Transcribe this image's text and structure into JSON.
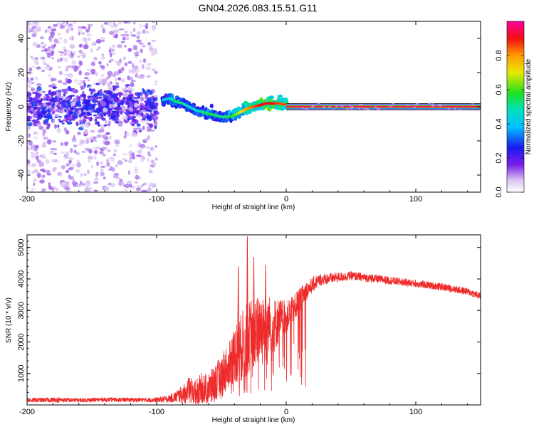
{
  "figure_title": "GN04.2026.083.15.51.G11",
  "chart_data": [
    {
      "type": "heatmap",
      "title": "GN04.2026.083.15.51.G11",
      "xlabel": "Height of straight line (km)",
      "ylabel": "Frequency (Hz)",
      "xlim": [
        -200,
        150
      ],
      "ylim": [
        -50,
        50
      ],
      "xticks": [
        -200,
        -100,
        0,
        100
      ],
      "yticks": [
        -40,
        -20,
        0,
        20,
        40
      ],
      "colorbar": {
        "label": "Normalized spectral amplitude",
        "range": [
          0,
          1
        ],
        "ticks": [
          "0.0",
          "0.2",
          "0.4",
          "0.6",
          "0.8"
        ]
      },
      "ridge": {
        "name": "dominant frequency trace",
        "x": [
          -95,
          -90,
          -85,
          -80,
          -75,
          -70,
          -65,
          -60,
          -55,
          -50,
          -45,
          -40,
          -35,
          -30,
          -25,
          -20,
          -15,
          -10,
          -5,
          0,
          150
        ],
        "y": [
          4,
          5,
          3,
          2,
          0,
          -2,
          -3,
          -4,
          -5,
          -6,
          -6,
          -5,
          -3,
          -1,
          0,
          1,
          2,
          2,
          2,
          1,
          0
        ],
        "amplitude": [
          0.4,
          0.45,
          0.55,
          0.5,
          0.45,
          0.45,
          0.5,
          0.55,
          0.55,
          0.5,
          0.55,
          0.6,
          0.7,
          0.8,
          0.85,
          0.9,
          0.9,
          0.9,
          0.85,
          0.85,
          0.95
        ]
      },
      "noise_region_x": [
        -200,
        -85
      ],
      "steady_band_x": [
        0,
        150
      ],
      "steady_band_y": 0
    },
    {
      "type": "line",
      "title": "",
      "xlabel": "Height of straight line (km)",
      "ylabel": "SNR (10 * v/v)",
      "xlim": [
        -200,
        150
      ],
      "ylim": [
        0,
        5400
      ],
      "xticks": [
        -200,
        -100,
        0,
        100
      ],
      "yticks": [
        1000,
        2000,
        3000,
        4000,
        5000
      ],
      "color": "#ee2a2a",
      "series": [
        {
          "name": "SNR",
          "x": [
            -200,
            -180,
            -160,
            -140,
            -120,
            -100,
            -90,
            -85,
            -80,
            -75,
            -70,
            -65,
            -60,
            -55,
            -50,
            -45,
            -40,
            -35,
            -30,
            -25,
            -20,
            -15,
            -10,
            -5,
            0,
            5,
            10,
            15,
            20,
            25,
            30,
            40,
            50,
            60,
            80,
            100,
            120,
            140,
            150
          ],
          "values": [
            150,
            160,
            150,
            170,
            160,
            160,
            200,
            260,
            350,
            450,
            400,
            550,
            500,
            700,
            900,
            1300,
            1600,
            1800,
            2100,
            2300,
            2500,
            2650,
            2500,
            2700,
            2800,
            3000,
            3300,
            3600,
            3800,
            3950,
            4000,
            4050,
            4100,
            4050,
            3950,
            3850,
            3750,
            3600,
            3450
          ],
          "noise_amp": [
            70,
            80,
            70,
            70,
            70,
            80,
            120,
            200,
            300,
            450,
            400,
            500,
            500,
            600,
            700,
            800,
            900,
            1100,
            1200,
            1100,
            1000,
            900,
            900,
            700,
            500,
            450,
            400,
            300,
            250,
            200,
            180,
            160,
            140,
            140,
            130,
            120,
            120,
            120,
            120
          ]
        }
      ],
      "spikes": [
        {
          "x": -30,
          "y": 5350
        },
        {
          "x": -37,
          "y": 4400
        },
        {
          "x": -25,
          "y": 4700
        },
        {
          "x": -16,
          "y": 4450
        }
      ]
    }
  ]
}
